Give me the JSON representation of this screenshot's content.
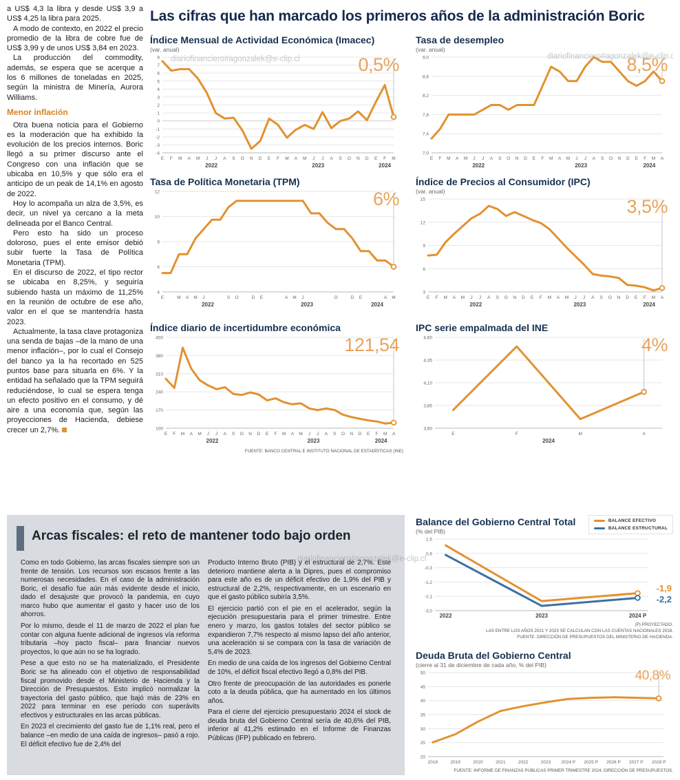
{
  "colors": {
    "orange": "#E2912F",
    "orange_light": "#E8A35B",
    "blue": "#3D6FA3",
    "navy": "#16304F",
    "panel_gray": "#D8DBDF",
    "accent_bar": "#5C6E80"
  },
  "page": {
    "headline": "Las cifras que han marcado los primeros años de la administración Boric",
    "watermark": "diariofinanciero#agonzalek@e-clip.cl",
    "charts_source": "FUENTE: BANCO CENTRAL E INSTITUTO NACIONAL DE ESTADÍSTICAS (INE)"
  },
  "left_column": {
    "intro_paragraphs": [
      "a US$ 4,3 la libra y desde US$ 3,9 a US$ 4,25 la libra para 2025.",
      "A modo de contexto, en 2022 el precio promedio de la libra de cobre fue de US$ 3,99 y de unos US$ 3,84 en 2023.",
      "La producción del commodity, además, se espera que se acerque a los 6 millones de toneladas en 2025, según la ministra de Minería, Aurora Williams."
    ],
    "subhead": "Menor inflación",
    "body_paragraphs": [
      "Otra buena noticia para el Gobierno es la moderación que ha exhibido la evolución de los precios internos. Boric llegó a su primer discurso ante el Congreso con una inflación que se ubicaba en 10,5% y que sólo era el anticipo de un peak de 14,1% en agosto de 2022.",
      "Hoy lo acompaña un alza de 3,5%, es decir, un nivel ya cercano a la meta delineada por el Banco Central.",
      "Pero esto ha sido un proceso doloroso, pues el ente emisor debió subir fuerte la Tasa de Política Monetaria (TPM).",
      "En el discurso de 2022, el tipo rector se ubicaba en 8,25%, y seguiría subiendo hasta un máximo de 11,25% en la reunión de octubre de ese año, valor en el que se mantendría hasta 2023.",
      "Actualmente, la tasa clave protagoniza una senda de bajas –de la mano de una menor inflación–, por lo cual el Consejo del banco ya la ha recortado en 525 puntos base para situarla en 6%. Y la entidad ha señalado que la TPM seguirá reduciéndose, lo cual se espera tenga un efecto positivo en el consumo, y dé aire a una economía que, según las proyecciones de Hacienda, debiese crecer un 2,7%."
    ]
  },
  "fiscal_section": {
    "title": "Arcas fiscales: el reto de mantener todo bajo orden",
    "col1_paragraphs": [
      "Como en todo Gobierno, las arcas fiscales siempre son un frente de tensión. Los recursos son escasos frente a las numerosas necesidades. En el caso de la administración Boric, el desafío fue aún más evidente desde el inicio, dado el desajuste que provocó la pandemia, en cuyo marco hubo que aumentar el gasto y hacer uso de los ahorros.",
      "Por lo mismo, desde el 11 de marzo de 2022 el plan fue contar con alguna fuente adicional de ingresos vía reforma tributaria –hoy pacto fiscal– para financiar nuevos proyectos, lo que aún no se ha logrado.",
      "Pese a que esto no se ha materializado, el Presidente Boric se ha alineado con el objetivo de responsabilidad fiscal promovido desde el Ministerio de Hacienda y la Dirección de Presupuestos. Esto implicó normalizar la trayectoria del gasto público, que bajó más de 23% en 2022 para terminar en ese período con superávits efectivos y estructurales en las arcas públicas.",
      "En 2023 el crecimiento del gasto fue de 1,1% real, pero el balance –en medio de una caída de ingresos– pasó a rojo. El déficit efectivo fue de 2,4% del"
    ],
    "col2_paragraphs": [
      "Producto Interno Bruto (PIB) y el estructural de 2,7%. Este deterioro mantiene alerta a la Dipres, pues el compromiso para este año es de un déficit efectivo de 1,9% del PIB y estructural de 2,2%, respectivamente, en un escenario en que el gasto público subiría 3,5%.",
      "El ejercicio partió con el pie en el acelerador, según la ejecución presupuestaria para el primer trimestre. Entre enero y marzo, los gastos totales del sector público se expandieron 7,7% respecto al mismo lapso del año anterior, una aceleración si se compara con la tasa de variación de 5,4% de 2023.",
      "En medio de una caída de los ingresos del Gobierno Central de 10%, el déficit fiscal efectivo llegó a 0,8% del PIB.",
      "Otro frente de preocupación de las autoridades es ponerle coto a la deuda pública, que ha aumentado en los últimos años.",
      "Para el cierre del ejercicio presupuestario 2024 el stock de deuda bruta del Gobierno Central sería de 40,6% del PIB, inferior al 41,2% estimado en el Informe de Finanzas Públicas (IFP) publicado en febrero."
    ]
  },
  "chart_data": [
    {
      "id": "imacec",
      "type": "line",
      "title": "Índice Mensual de Actividad Económica (Imacec)",
      "subtitle": "(var. anual)",
      "annotation": "0,5%",
      "ylim": [
        -4,
        8
      ],
      "yticks": [
        8,
        7,
        6,
        5,
        4,
        3,
        2,
        1,
        0,
        -1,
        -2,
        -3,
        -4
      ],
      "ytick_labels": [
        "8",
        "7",
        "6",
        "5",
        "4",
        "3",
        "2",
        "1",
        "0",
        "-1",
        "-2",
        "-3",
        "-4"
      ],
      "x_labels": [
        "E",
        "F",
        "M",
        "A",
        "M",
        "J",
        "J",
        "A",
        "S",
        "O",
        "N",
        "D",
        "E",
        "F",
        "M",
        "A",
        "M",
        "J",
        "J",
        "A",
        "S",
        "O",
        "N",
        "D",
        "E",
        "F",
        "M"
      ],
      "years": [
        {
          "label": "2022",
          "from": 0,
          "to": 11
        },
        {
          "label": "2023",
          "from": 12,
          "to": 23
        },
        {
          "label": "2024",
          "from": 24,
          "to": 26
        }
      ],
      "values": [
        7.5,
        6.3,
        6.5,
        6.5,
        5.3,
        3.5,
        1.0,
        0.3,
        0.4,
        -1.2,
        -3.5,
        -2.5,
        0.3,
        -0.5,
        -2.1,
        -1.1,
        -0.5,
        -1.0,
        1.1,
        -0.9,
        0.0,
        0.3,
        1.2,
        0.1,
        2.4,
        4.5,
        0.5
      ],
      "dropline": true
    },
    {
      "id": "tasa-desempleo",
      "type": "line",
      "title": "Tasa de desempleo",
      "subtitle": "(var. anual)",
      "annotation": "8,5%",
      "ylim": [
        7.0,
        9.0
      ],
      "yticks": [
        9.0,
        8.6,
        8.2,
        7.8,
        7.4,
        7.0
      ],
      "ytick_labels": [
        "9,0",
        "8,6",
        "8,2",
        "7,8",
        "7,4",
        "7,0"
      ],
      "x_labels": [
        "E",
        "F",
        "M",
        "A",
        "M",
        "J",
        "J",
        "A",
        "S",
        "O",
        "N",
        "D",
        "E",
        "F",
        "M",
        "A",
        "M",
        "J",
        "J",
        "A",
        "S",
        "O",
        "N",
        "D",
        "E",
        "F",
        "M",
        "A"
      ],
      "years": [
        {
          "label": "2022",
          "from": 0,
          "to": 11
        },
        {
          "label": "2023",
          "from": 12,
          "to": 23
        },
        {
          "label": "2024",
          "from": 24,
          "to": 27
        }
      ],
      "values": [
        7.3,
        7.5,
        7.8,
        7.8,
        7.8,
        7.8,
        7.9,
        8.0,
        8.0,
        7.9,
        8.0,
        8.0,
        8.0,
        8.4,
        8.8,
        8.7,
        8.5,
        8.5,
        8.8,
        9.0,
        8.9,
        8.9,
        8.7,
        8.5,
        8.4,
        8.5,
        8.7,
        8.5
      ],
      "dropline": true
    },
    {
      "id": "tpm",
      "type": "line",
      "title": "Tasa de Política Monetaria (TPM)",
      "annotation": "6%",
      "ylim": [
        4,
        12
      ],
      "yticks": [
        12,
        10,
        8,
        6,
        4
      ],
      "ytick_labels": [
        "12",
        "10",
        "8",
        "6",
        "4"
      ],
      "x_labels": [
        "E",
        "",
        "M",
        "A",
        "M",
        "J",
        "",
        "",
        "S",
        "O",
        "",
        "D",
        "E",
        "",
        "",
        "A",
        "M",
        "J",
        "",
        "",
        "",
        "O",
        "",
        "D",
        "E",
        "",
        "",
        "A",
        "M"
      ],
      "years": [
        {
          "label": "2022",
          "from": 0,
          "to": 11
        },
        {
          "label": "2023",
          "from": 12,
          "to": 23
        },
        {
          "label": "2024",
          "from": 24,
          "to": 28
        }
      ],
      "values": [
        5.5,
        5.5,
        7.0,
        7.0,
        8.25,
        9.0,
        9.75,
        9.75,
        10.75,
        11.25,
        11.25,
        11.25,
        11.25,
        11.25,
        11.25,
        11.25,
        11.25,
        11.25,
        10.25,
        10.25,
        9.5,
        9.0,
        9.0,
        8.25,
        7.25,
        7.25,
        6.5,
        6.5,
        6.0
      ],
      "dropline": true
    },
    {
      "id": "ipc",
      "type": "line",
      "title": "Índice de Precios al Consumidor (IPC)",
      "subtitle": "(var. anual)",
      "annotation": "3,5%",
      "ylim": [
        3,
        15
      ],
      "yticks": [
        15,
        12,
        9,
        6,
        3
      ],
      "ytick_labels": [
        "15",
        "12",
        "9",
        "6",
        "3"
      ],
      "x_labels": [
        "E",
        "F",
        "M",
        "A",
        "M",
        "J",
        "J",
        "A",
        "S",
        "O",
        "N",
        "D",
        "E",
        "F",
        "M",
        "A",
        "M",
        "J",
        "J",
        "A",
        "S",
        "O",
        "N",
        "D",
        "E",
        "F",
        "M",
        "A"
      ],
      "years": [
        {
          "label": "2022",
          "from": 0,
          "to": 11
        },
        {
          "label": "2023",
          "from": 12,
          "to": 23
        },
        {
          "label": "2024",
          "from": 24,
          "to": 27
        }
      ],
      "values": [
        7.7,
        7.8,
        9.4,
        10.5,
        11.5,
        12.5,
        13.1,
        14.1,
        13.7,
        12.8,
        13.3,
        12.8,
        12.3,
        11.9,
        11.1,
        9.9,
        8.7,
        7.6,
        6.5,
        5.3,
        5.1,
        5.0,
        4.8,
        3.9,
        3.8,
        3.6,
        3.2,
        3.5
      ],
      "dropline": true
    },
    {
      "id": "incertidumbre-economica",
      "type": "line",
      "title": "Índice diario de incertidumbre económica",
      "annotation": "121,54",
      "ylim": [
        100,
        450
      ],
      "yticks": [
        450,
        380,
        310,
        240,
        170,
        100
      ],
      "ytick_labels": [
        "450",
        "380",
        "310",
        "240",
        "170",
        "100"
      ],
      "x_labels": [
        "E",
        "F",
        "M",
        "A",
        "M",
        "J",
        "J",
        "A",
        "S",
        "O",
        "N",
        "D",
        "E",
        "F",
        "M",
        "A",
        "M",
        "J",
        "J",
        "A",
        "S",
        "O",
        "N",
        "D",
        "E",
        "F",
        "M",
        "A"
      ],
      "years": [
        {
          "label": "2022",
          "from": 0,
          "to": 11
        },
        {
          "label": "2023",
          "from": 12,
          "to": 23
        },
        {
          "label": "2024",
          "from": 24,
          "to": 27
        }
      ],
      "values": [
        290,
        255,
        410,
        330,
        285,
        265,
        250,
        258,
        232,
        228,
        238,
        230,
        207,
        215,
        200,
        192,
        196,
        176,
        170,
        176,
        170,
        152,
        143,
        136,
        130,
        126,
        118,
        121.54
      ],
      "dropline": true
    },
    {
      "id": "ipc-serie-empalmada",
      "type": "line",
      "title": "IPC serie empalmada del INE",
      "annotation": "4%",
      "ylim": [
        3.6,
        4.6
      ],
      "yticks": [
        4.6,
        4.35,
        4.1,
        3.85,
        3.6
      ],
      "ytick_labels": [
        "4,60",
        "4,35",
        "4,10",
        "3,85",
        "3,60"
      ],
      "x_labels": [
        "E",
        "F",
        "M",
        "A"
      ],
      "years": [
        {
          "label": "2024",
          "from": 0,
          "to": 3
        }
      ],
      "values": [
        3.8,
        4.5,
        3.7,
        4.0
      ],
      "inset": 0.08,
      "dropline": true
    },
    {
      "id": "balance-gobierno-central",
      "type": "line",
      "title": "Balance del Gobierno Central Total",
      "subtitle": "(% del PIB)",
      "ylim": [
        -3.0,
        1.5
      ],
      "yticks": [
        1.5,
        0.6,
        -0.3,
        -1.2,
        -2.1,
        -3.0
      ],
      "ytick_labels": [
        "1,5",
        "0,6",
        "-0,3",
        "-1,2",
        "-2,1",
        "-3,0"
      ],
      "x_labels": [
        "2022",
        "2023",
        "2024 P"
      ],
      "x_style": "year",
      "series": [
        {
          "name": "BALANCE EFECTIVO",
          "color": "orange",
          "values": [
            1.1,
            -2.4,
            -1.9
          ]
        },
        {
          "name": "BALANCE ESTRUCTURAL",
          "color": "blue",
          "values": [
            0.5,
            -2.7,
            -2.2
          ]
        }
      ],
      "annotations": {
        "efectivo": "-1,9",
        "estructural": "-2,2"
      },
      "legend_position": "top-right",
      "inset": 0.05,
      "right_pad": 36,
      "dropline": false,
      "footnotes": [
        "(P) PROYECTADO.",
        "LAS ENTRE LOS AÑOS 2021 Y 2023 SE CALCULAN CON LAS CUENTAS NACIONALES 2018.",
        "FUENTE: DIRECCIÓN DE PRESUPUESTOS DEL MINISTERIO DE HACIENDA."
      ]
    },
    {
      "id": "deuda-bruta-gobierno-central",
      "type": "line",
      "title": "Deuda Bruta del Gobierno Central",
      "subtitle": "(cierre al 31 de diciembre de cada año, % del PIB)",
      "annotation": "40,8%",
      "ylim": [
        20,
        50
      ],
      "yticks": [
        50,
        45,
        40,
        35,
        30,
        25,
        20
      ],
      "ytick_labels": [
        "50",
        "45",
        "40",
        "35",
        "30",
        "25",
        "20"
      ],
      "x_labels": [
        "2018",
        "2019",
        "2020",
        "2021",
        "2022",
        "2023",
        "2024 P",
        "2025 P",
        "2026 P",
        "2027 P",
        "2028 P"
      ],
      "values": [
        25.1,
        28.0,
        32.5,
        36.3,
        38.0,
        39.4,
        40.6,
        41.0,
        41.2,
        41.0,
        40.8
      ],
      "inset": 0.02,
      "dropline": true,
      "footnotes": [
        "FUENTE: INFORME DE FINANZAS PÚBLICAS PRIMER TRIMESTRE 2024, DIRECCIÓN DE PRESUPUESTOS."
      ]
    }
  ]
}
